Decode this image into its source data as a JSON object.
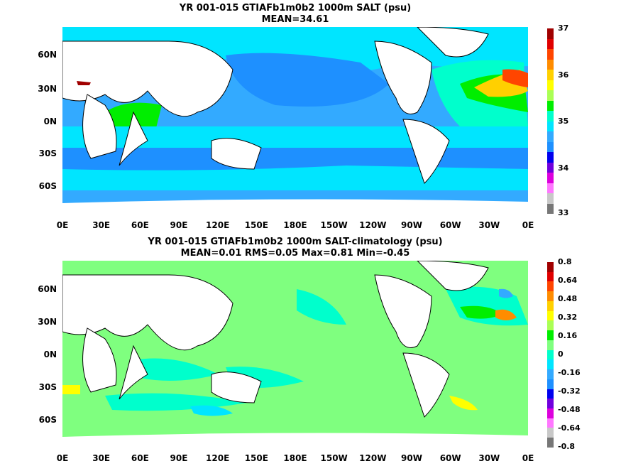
{
  "top": {
    "title": "YR 001-015 GTIAFb1m0b2 1000m SALT (psu)",
    "subtitle": "MEAN=34.61",
    "ylabels": [
      "60N",
      "30N",
      "0N",
      "30S",
      "60S"
    ],
    "xlabels": [
      "0E",
      "30E",
      "60E",
      "90E",
      "120E",
      "150E",
      "180E",
      "150W",
      "120W",
      "90W",
      "60W",
      "30W",
      "0E"
    ],
    "colorbar_labels": [
      "37",
      "36",
      "35",
      "34",
      "33"
    ],
    "colorbar_colors": [
      "#a00000",
      "#e00000",
      "#ff4500",
      "#ff8c00",
      "#ffd000",
      "#ffff00",
      "#aaff55",
      "#00ee00",
      "#00ffcc",
      "#00e5ff",
      "#33aaff",
      "#1e90ff",
      "#0000ee",
      "#7000dd",
      "#dd00dd",
      "#ff77ff",
      "#c8c8c8",
      "#777777"
    ]
  },
  "bottom": {
    "title": "YR 001-015 GTIAFb1m0b2 1000m SALT-climatology (psu)",
    "subtitle": "MEAN=0.01   RMS=0.05   Max=0.81   Min=-0.45",
    "ylabels": [
      "60N",
      "30N",
      "0N",
      "30S",
      "60S"
    ],
    "xlabels": [
      "0E",
      "30E",
      "60E",
      "90E",
      "120E",
      "150E",
      "180E",
      "150W",
      "120W",
      "90W",
      "60W",
      "30W",
      "0E"
    ],
    "colorbar_labels": [
      "0.8",
      "0.64",
      "0.48",
      "0.32",
      "0.16",
      "0",
      "-0.16",
      "-0.32",
      "-0.48",
      "-0.64",
      "-0.8"
    ],
    "colorbar_colors": [
      "#a00000",
      "#e00000",
      "#ff4500",
      "#ff8c00",
      "#ffd000",
      "#ffff00",
      "#aaff55",
      "#00ee00",
      "#7fff7f",
      "#00ffcc",
      "#00e5ff",
      "#33aaff",
      "#1e90ff",
      "#0000ee",
      "#7000dd",
      "#dd00dd",
      "#ff77ff",
      "#c8c8c8",
      "#777777"
    ]
  }
}
